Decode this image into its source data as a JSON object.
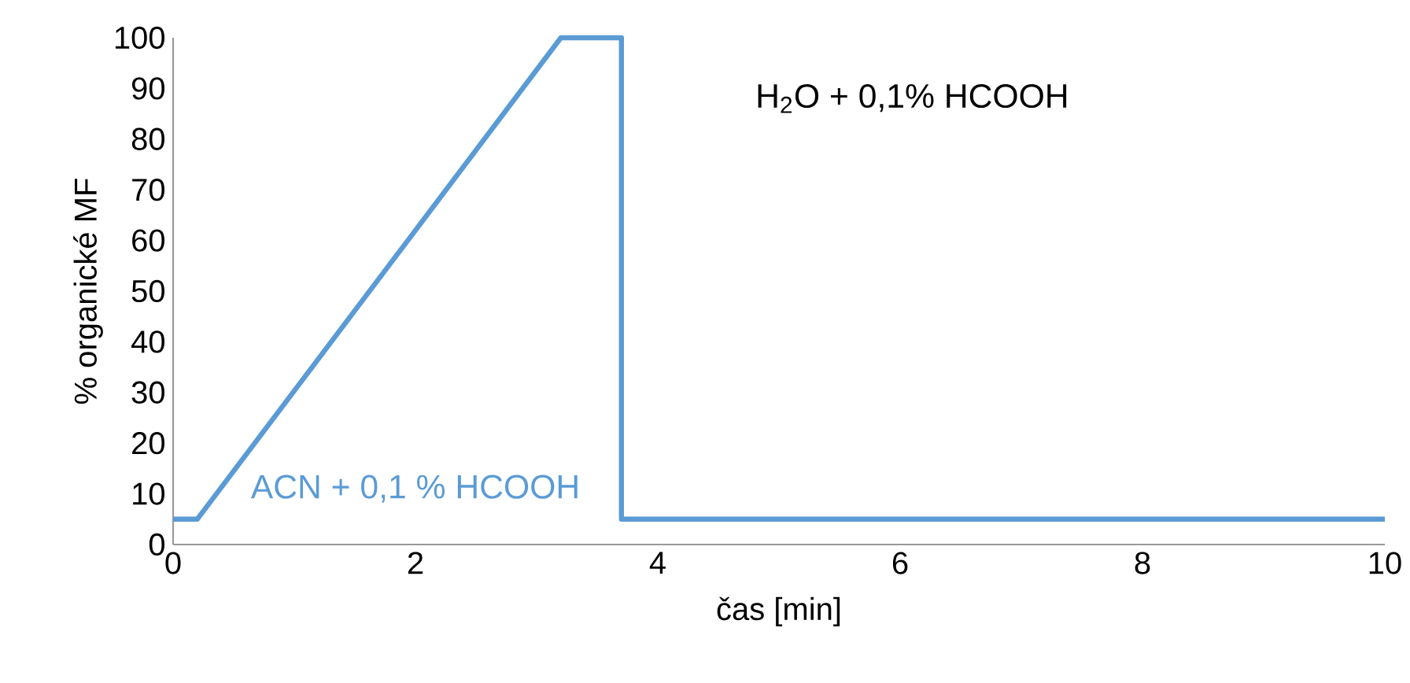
{
  "chart_data": {
    "type": "line",
    "xlabel": "čas [min]",
    "ylabel": "% organické MF",
    "x": [
      0,
      0.2,
      3.2,
      3.7,
      3.7,
      10
    ],
    "series": [
      {
        "color": "#5b9bd5",
        "values": [
          5,
          5,
          100,
          100,
          5,
          5
        ]
      }
    ],
    "xlim": [
      0,
      10
    ],
    "ylim": [
      0,
      100
    ],
    "xticks": [
      0,
      2,
      4,
      6,
      8,
      10
    ],
    "yticks": [
      0,
      10,
      20,
      30,
      40,
      50,
      60,
      70,
      80,
      90,
      100
    ],
    "grid": false,
    "marker": "none",
    "line_style": "solid",
    "annotations": [
      "H$_{2}$O + 0,1% HCOOH",
      "ACN + 0,1 % HCOOH"
    ]
  }
}
